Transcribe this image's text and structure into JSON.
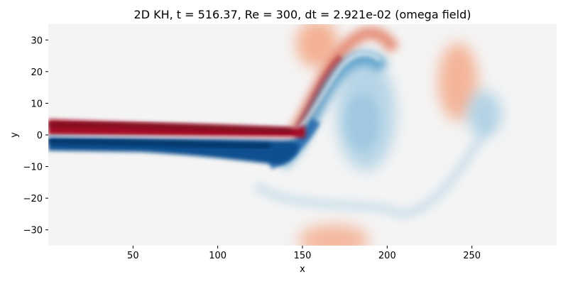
{
  "chart_data": {
    "type": "heatmap",
    "title": "2D KH, t =  516.37, Re = 300, dt = 2.921e-02 (omega field)",
    "xlabel": "x",
    "ylabel": "y",
    "xlim": [
      0,
      300
    ],
    "ylim": [
      -35,
      35
    ],
    "xticks": [
      50,
      100,
      150,
      200,
      250
    ],
    "yticks": [
      30,
      20,
      10,
      0,
      -10,
      -20,
      -30
    ],
    "grid": false,
    "colormap": "RdBu_r",
    "colors": {
      "background": "#f4f4f4",
      "deep_red": "#8f0a1d",
      "red": "#d6604d",
      "light_red": "#f4a582",
      "deep_blue": "#083a70",
      "blue": "#4393c3",
      "light_blue": "#a7cde3"
    },
    "structures": [
      {
        "label": "upper shear layer (positive vorticity)",
        "sign": 1,
        "x_range": [
          0,
          150
        ],
        "y_center": 1.7,
        "thickness": 2.5,
        "intensity": 1.0
      },
      {
        "label": "lower shear layer (negative vorticity)",
        "sign": -1,
        "x_range": [
          0,
          145
        ],
        "y_center": -3.5,
        "thickness": 2.5,
        "intensity": 1.0
      },
      {
        "label": "rising red arm",
        "sign": 1,
        "from": [
          140,
          2
        ],
        "to": [
          180,
          27
        ],
        "intensity": 0.55
      },
      {
        "label": "rising blue arm",
        "sign": -1,
        "from": [
          140,
          -6
        ],
        "to": [
          178,
          18
        ],
        "intensity": 0.7
      },
      {
        "label": "blue vortex",
        "sign": -1,
        "center": [
          188,
          8
        ],
        "radius": [
          14,
          16
        ],
        "intensity": 0.35
      },
      {
        "label": "red blob upper",
        "sign": 1,
        "center": [
          160,
          30
        ],
        "radius": [
          8,
          6
        ],
        "intensity": 0.45
      },
      {
        "label": "red patch right",
        "sign": 1,
        "center": [
          240,
          17
        ],
        "radius": [
          9,
          14
        ],
        "intensity": 0.4
      },
      {
        "label": "blue patch right",
        "sign": -1,
        "center": [
          256,
          4
        ],
        "radius": [
          8,
          8
        ],
        "intensity": 0.3
      },
      {
        "label": "red blob bottom",
        "sign": 1,
        "center": [
          170,
          -33
        ],
        "radius": [
          14,
          5
        ],
        "intensity": 0.35
      },
      {
        "label": "faint blue filament",
        "sign": -1,
        "center": [
          230,
          -21
        ],
        "radius": [
          45,
          4
        ],
        "intensity": 0.12
      }
    ]
  }
}
